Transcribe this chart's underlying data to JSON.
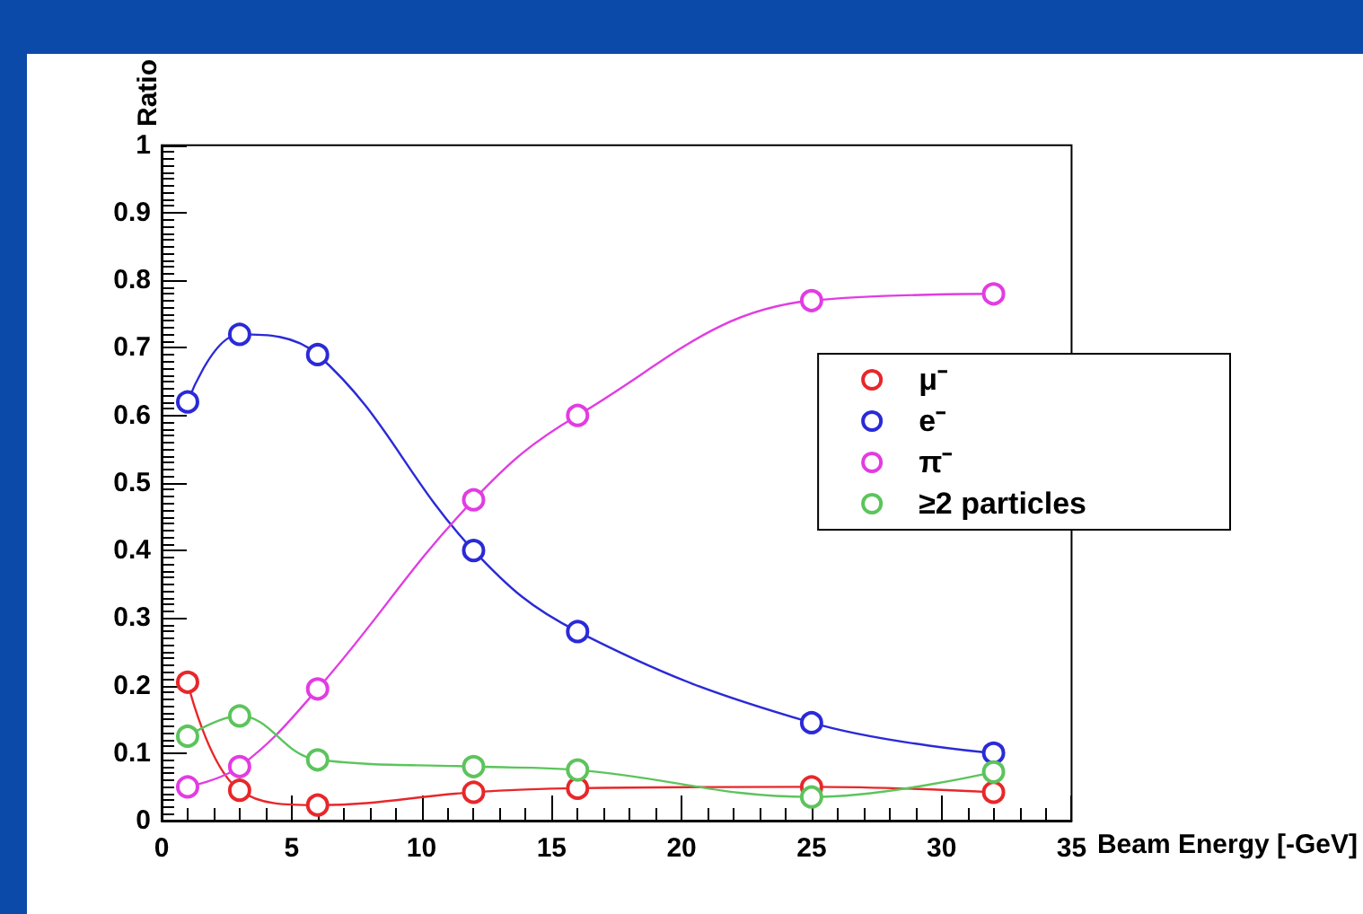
{
  "chart_data": {
    "type": "line",
    "xlabel": "Beam Energy [-GeV]",
    "ylabel": "Ratio",
    "x": [
      1,
      3,
      6,
      12,
      16,
      25,
      32
    ],
    "xlim": [
      0,
      35
    ],
    "xticks": [
      0,
      5,
      10,
      15,
      20,
      25,
      30,
      35
    ],
    "ylim": [
      0,
      1
    ],
    "yticks": [
      0,
      0.1,
      0.2,
      0.3,
      0.4,
      0.5,
      0.6,
      0.7,
      0.8,
      0.9,
      1
    ],
    "grid": false,
    "legend": "right",
    "marker": "circle",
    "line_style": "solid",
    "series": [
      {
        "name": "μ⁻",
        "color": "#e8272a",
        "values": [
          0.205,
          0.045,
          0.023,
          0.042,
          0.048,
          0.05,
          0.042
        ]
      },
      {
        "name": "e⁻",
        "color": "#2a2ad8",
        "values": [
          0.62,
          0.72,
          0.69,
          0.4,
          0.28,
          0.145,
          0.1
        ]
      },
      {
        "name": "π⁻",
        "color": "#e23ce2",
        "values": [
          0.05,
          0.08,
          0.195,
          0.475,
          0.6,
          0.77,
          0.78
        ]
      },
      {
        "name": "≥2 particles",
        "color": "#5cc45c",
        "values": [
          0.125,
          0.155,
          0.09,
          0.08,
          0.075,
          0.035,
          0.072
        ]
      }
    ]
  }
}
